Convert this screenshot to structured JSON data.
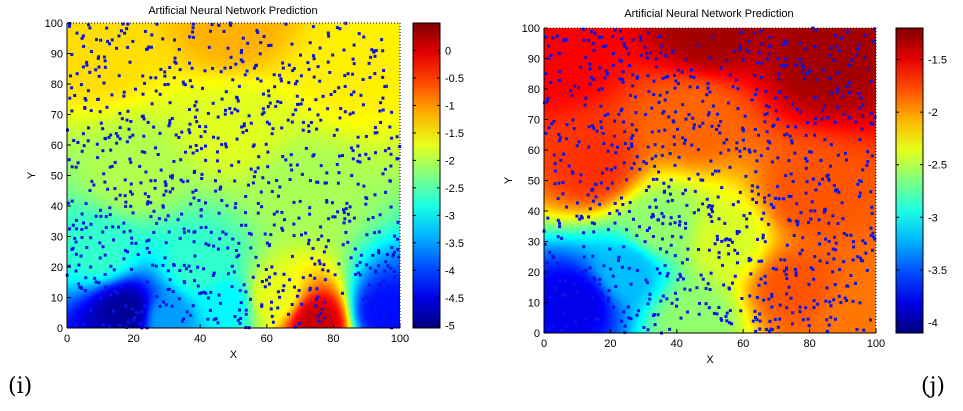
{
  "panel_labels": [
    "(i)",
    "(j)"
  ],
  "chart_data": [
    {
      "type": "heatmap",
      "title": "Artificial Neural Network Prediction",
      "xlabel": "X",
      "ylabel": "Y",
      "xlim": [
        0,
        100
      ],
      "ylim": [
        0,
        100
      ],
      "xticks": [
        0,
        20,
        40,
        60,
        80,
        100
      ],
      "yticks": [
        0,
        10,
        20,
        30,
        40,
        50,
        60,
        70,
        80,
        90,
        100
      ],
      "colorbar": {
        "colormap": "jet",
        "clim": [
          -5.05,
          0.5
        ],
        "ticks": [
          0,
          -0.5,
          -1,
          -1.5,
          -2,
          -2.5,
          -3,
          -3.5,
          -4,
          -4.5,
          -5
        ],
        "tick_labels": [
          "0",
          "-0.5",
          "-1",
          "-1.5",
          "-2",
          "-2.5",
          "-3",
          "-3.5",
          "-4",
          "-4.5",
          "-5"
        ]
      },
      "field_anchors": [
        {
          "x": 50,
          "y": 100,
          "value": -1.15
        },
        {
          "x": 10,
          "y": 90,
          "value": -1.4
        },
        {
          "x": 85,
          "y": 85,
          "value": -1.5
        },
        {
          "x": 50,
          "y": 65,
          "value": -1.75
        },
        {
          "x": 20,
          "y": 50,
          "value": -2.0
        },
        {
          "x": 70,
          "y": 45,
          "value": -2.05
        },
        {
          "x": 10,
          "y": 25,
          "value": -2.7
        },
        {
          "x": 40,
          "y": 20,
          "value": -2.7
        },
        {
          "x": 18,
          "y": 5,
          "value": -4.9
        },
        {
          "x": 30,
          "y": 3,
          "value": -3.5
        },
        {
          "x": 48,
          "y": 8,
          "value": -3.0
        },
        {
          "x": 62,
          "y": 10,
          "value": -1.7
        },
        {
          "x": 75,
          "y": 2,
          "value": 0.1
        },
        {
          "x": 95,
          "y": 5,
          "value": -4.3
        }
      ],
      "marker_color": "#0a14e6"
    },
    {
      "type": "heatmap",
      "title": "Artificial Neural Network Prediction",
      "xlabel": "X",
      "ylabel": "Y",
      "xlim": [
        0,
        100
      ],
      "ylim": [
        0,
        100
      ],
      "xticks": [
        0,
        20,
        40,
        60,
        80,
        100
      ],
      "yticks": [
        0,
        10,
        20,
        30,
        40,
        50,
        60,
        70,
        80,
        90,
        100
      ],
      "colorbar": {
        "colormap": "jet",
        "clim": [
          -4.1,
          -1.2
        ],
        "ticks": [
          -1.5,
          -2,
          -2.5,
          -3,
          -3.5,
          -4
        ],
        "tick_labels": [
          "-1.5",
          "-2",
          "-2.5",
          "-3",
          "-3.5",
          "-4"
        ]
      },
      "field_anchors": [
        {
          "x": 50,
          "y": 100,
          "value": -1.3
        },
        {
          "x": 85,
          "y": 90,
          "value": -1.3
        },
        {
          "x": 5,
          "y": 90,
          "value": -1.55
        },
        {
          "x": 15,
          "y": 55,
          "value": -1.7
        },
        {
          "x": 45,
          "y": 70,
          "value": -1.85
        },
        {
          "x": 80,
          "y": 45,
          "value": -1.8
        },
        {
          "x": 35,
          "y": 35,
          "value": -2.6
        },
        {
          "x": 55,
          "y": 30,
          "value": -2.4
        },
        {
          "x": 10,
          "y": 10,
          "value": -3.8
        },
        {
          "x": 25,
          "y": 20,
          "value": -3.2
        },
        {
          "x": 45,
          "y": 5,
          "value": -2.6
        },
        {
          "x": 75,
          "y": 15,
          "value": -1.8
        },
        {
          "x": 95,
          "y": 5,
          "value": -1.9
        }
      ],
      "marker_color": "#0a14e6"
    }
  ]
}
